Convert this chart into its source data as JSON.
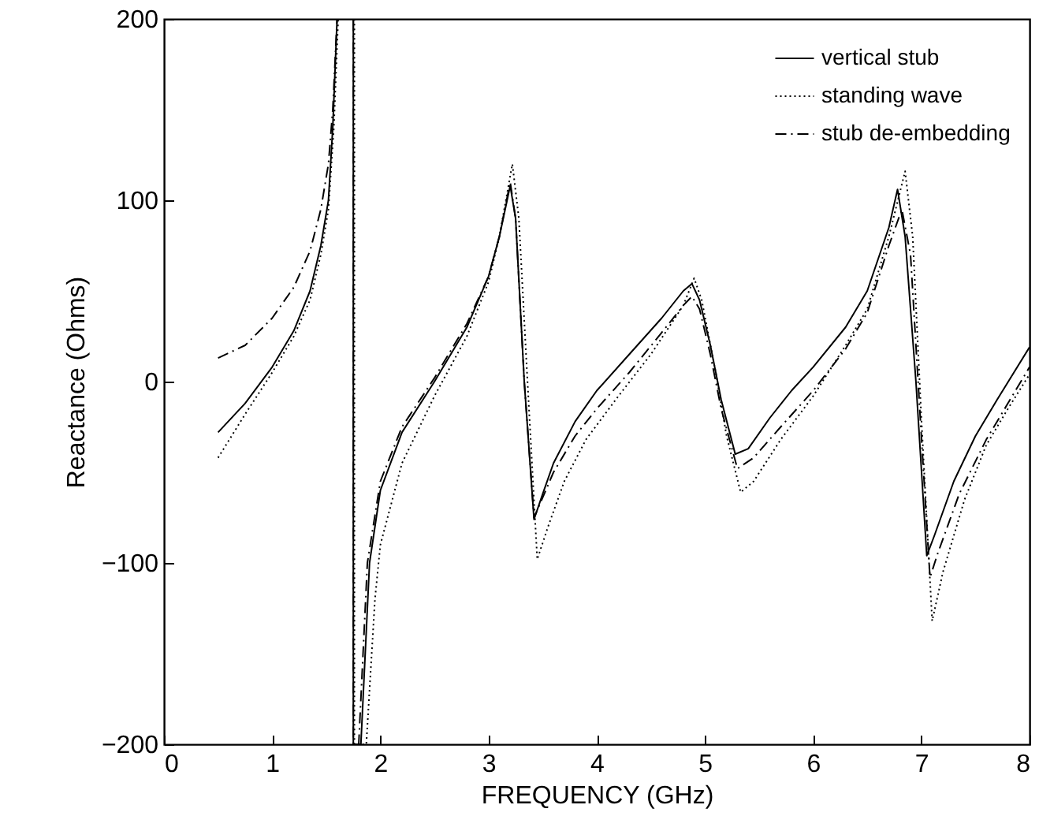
{
  "chart_data": {
    "type": "line",
    "xlabel": "FREQUENCY (GHz)",
    "ylabel": "Reactance (Ohms)",
    "xlim": [
      0,
      8
    ],
    "ylim": [
      -200,
      200
    ],
    "xticks": [
      0,
      1,
      2,
      3,
      4,
      5,
      6,
      7,
      8
    ],
    "yticks": [
      -200,
      -100,
      0,
      100,
      200
    ],
    "grid": false,
    "legend": "top right",
    "series": [
      {
        "name": "vertical stub",
        "color": "#000000",
        "line_style": "solid",
        "x": [
          0.5,
          0.75,
          1.0,
          1.2,
          1.35,
          1.45,
          1.52,
          1.56,
          1.6,
          1.75,
          1.75,
          1.82,
          1.9,
          2.0,
          2.2,
          2.5,
          2.8,
          3.0,
          3.1,
          3.2,
          3.25,
          3.33,
          3.42,
          3.5,
          3.6,
          3.8,
          4.0,
          4.3,
          4.6,
          4.8,
          4.88,
          4.95,
          5.05,
          5.15,
          5.28,
          5.4,
          5.6,
          5.8,
          6.0,
          6.3,
          6.5,
          6.7,
          6.78,
          6.85,
          6.95,
          7.05,
          7.12,
          7.3,
          7.5,
          7.7,
          8.0
        ],
        "values": [
          -28,
          -12,
          8,
          28,
          50,
          75,
          100,
          140,
          200,
          200,
          -200,
          -200,
          -100,
          -60,
          -28,
          0,
          30,
          58,
          80,
          108,
          90,
          0,
          -76,
          -62,
          -45,
          -22,
          -5,
          15,
          35,
          50,
          54,
          45,
          20,
          -10,
          -40,
          -37,
          -20,
          -5,
          8,
          30,
          50,
          85,
          106,
          80,
          0,
          -96,
          -85,
          -55,
          -30,
          -10,
          19
        ]
      },
      {
        "name": "standing wave",
        "color": "#000000",
        "line_style": "dotted",
        "x": [
          0.5,
          0.75,
          1.0,
          1.2,
          1.35,
          1.45,
          1.52,
          1.57,
          1.61,
          1.76,
          1.76,
          1.87,
          1.95,
          2.0,
          2.2,
          2.5,
          2.8,
          3.0,
          3.1,
          3.22,
          3.28,
          3.36,
          3.45,
          3.55,
          3.7,
          3.9,
          4.2,
          4.5,
          4.8,
          4.9,
          4.97,
          5.1,
          5.2,
          5.33,
          5.45,
          5.7,
          6.0,
          6.3,
          6.5,
          6.7,
          6.85,
          6.92,
          7.0,
          7.1,
          7.2,
          7.4,
          7.6,
          7.8,
          8.0
        ],
        "values": [
          -42,
          -18,
          5,
          25,
          45,
          70,
          95,
          140,
          200,
          200,
          -200,
          -200,
          -120,
          -90,
          -45,
          -8,
          25,
          55,
          80,
          120,
          90,
          0,
          -98,
          -80,
          -55,
          -32,
          -8,
          15,
          42,
          57,
          45,
          5,
          -30,
          -61,
          -55,
          -32,
          -8,
          20,
          40,
          80,
          116,
          80,
          -20,
          -132,
          -105,
          -65,
          -35,
          -15,
          4
        ]
      },
      {
        "name": "stub de-embedding",
        "color": "#000000",
        "line_style": "dashdot",
        "x": [
          0.5,
          0.75,
          1.0,
          1.2,
          1.35,
          1.45,
          1.52,
          1.56,
          1.6,
          1.75,
          1.75,
          1.8,
          1.88,
          2.0,
          2.2,
          2.5,
          2.8,
          3.0,
          3.1,
          3.2,
          3.25,
          3.33,
          3.42,
          3.5,
          3.6,
          3.8,
          4.0,
          4.3,
          4.6,
          4.8,
          4.88,
          4.95,
          5.05,
          5.15,
          5.3,
          5.45,
          5.7,
          6.0,
          6.3,
          6.5,
          6.7,
          6.82,
          6.9,
          7.0,
          7.08,
          7.15,
          7.35,
          7.6,
          7.8,
          8.0
        ],
        "values": [
          13,
          20,
          35,
          52,
          72,
          95,
          120,
          150,
          200,
          200,
          -200,
          -200,
          -100,
          -55,
          -25,
          2,
          32,
          58,
          80,
          110,
          90,
          0,
          -75,
          -64,
          -50,
          -30,
          -15,
          5,
          27,
          42,
          47,
          40,
          15,
          -15,
          -48,
          -42,
          -25,
          -5,
          18,
          38,
          75,
          95,
          70,
          -30,
          -108,
          -95,
          -62,
          -32,
          -12,
          8
        ]
      }
    ]
  }
}
